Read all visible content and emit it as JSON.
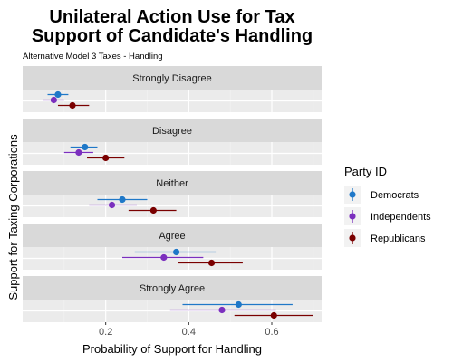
{
  "chart_data": {
    "type": "scatter",
    "subtype": "dot-and-whisker, faceted by row",
    "title_lines": [
      "Unilateral Action Use for Tax",
      "Support of Candidate's Handling"
    ],
    "subtitle": "Alternative Model 3 Taxes - Handling",
    "xlabel": "Probability of Support for Handling",
    "ylabel": "Support for Taxing Corporations",
    "xlim": [
      0.0,
      0.72
    ],
    "x_ticks": [
      0.2,
      0.4,
      0.6
    ],
    "x_tick_labels": [
      "0.2",
      "0.4",
      "0.6"
    ],
    "grid": true,
    "legend": {
      "title": "Party ID",
      "position": "right"
    },
    "facets": [
      "Strongly Disagree",
      "Disagree",
      "Neither",
      "Agree",
      "Strongly Agree"
    ],
    "series": [
      {
        "name": "Democrats",
        "color": "#1f78c8",
        "points": [
          {
            "facet": "Strongly Disagree",
            "estimate": 0.085,
            "low": 0.06,
            "high": 0.11
          },
          {
            "facet": "Disagree",
            "estimate": 0.15,
            "low": 0.115,
            "high": 0.18
          },
          {
            "facet": "Neither",
            "estimate": 0.24,
            "low": 0.18,
            "high": 0.3
          },
          {
            "facet": "Agree",
            "estimate": 0.37,
            "low": 0.27,
            "high": 0.465
          },
          {
            "facet": "Strongly Agree",
            "estimate": 0.52,
            "low": 0.385,
            "high": 0.65
          }
        ]
      },
      {
        "name": "Independents",
        "color": "#7b2fbe",
        "points": [
          {
            "facet": "Strongly Disagree",
            "estimate": 0.075,
            "low": 0.05,
            "high": 0.1
          },
          {
            "facet": "Disagree",
            "estimate": 0.135,
            "low": 0.1,
            "high": 0.17
          },
          {
            "facet": "Neither",
            "estimate": 0.215,
            "low": 0.16,
            "high": 0.275
          },
          {
            "facet": "Agree",
            "estimate": 0.34,
            "low": 0.24,
            "high": 0.435
          },
          {
            "facet": "Strongly Agree",
            "estimate": 0.48,
            "low": 0.355,
            "high": 0.61
          }
        ]
      },
      {
        "name": "Republicans",
        "color": "#7a0000",
        "points": [
          {
            "facet": "Strongly Disagree",
            "estimate": 0.12,
            "low": 0.085,
            "high": 0.16
          },
          {
            "facet": "Disagree",
            "estimate": 0.2,
            "low": 0.155,
            "high": 0.245
          },
          {
            "facet": "Neither",
            "estimate": 0.315,
            "low": 0.255,
            "high": 0.37
          },
          {
            "facet": "Agree",
            "estimate": 0.455,
            "low": 0.375,
            "high": 0.53
          },
          {
            "facet": "Strongly Agree",
            "estimate": 0.605,
            "low": 0.51,
            "high": 0.7
          }
        ]
      }
    ]
  }
}
